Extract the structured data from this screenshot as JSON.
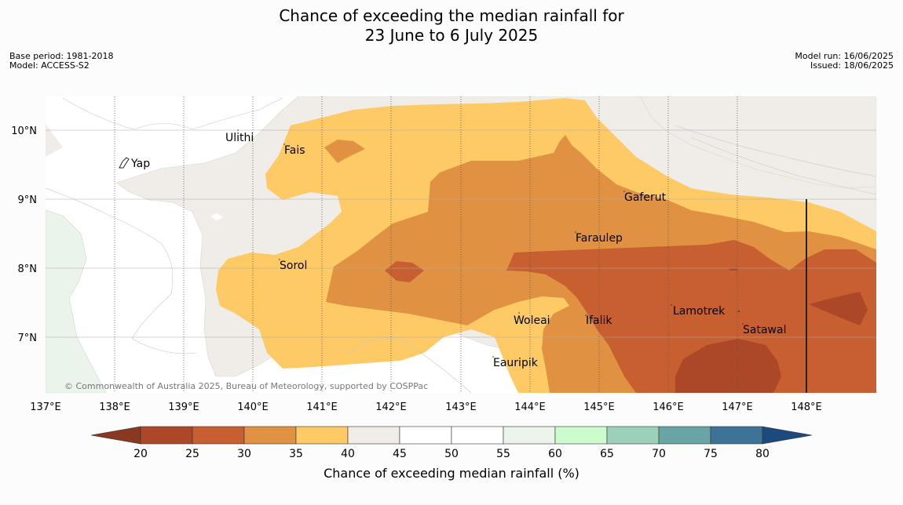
{
  "title": {
    "line1": "Chance of exceeding the median rainfall for",
    "line2": "23 June to 6 July 2025"
  },
  "meta": {
    "base_period": "Base period: 1981-2018",
    "model": "Model: ACCESS-S2",
    "model_run": "Model run: 16/06/2025",
    "issued": "Issued: 18/06/2025"
  },
  "copyright": "© Commonwealth of Australia 2025, Bureau of Meteorology, supported by COSPPac",
  "x_ticks": [
    "137°E",
    "138°E",
    "139°E",
    "140°E",
    "141°E",
    "142°E",
    "143°E",
    "144°E",
    "145°E",
    "146°E",
    "147°E",
    "148°E"
  ],
  "y_ticks": [
    "10°N",
    "9°N",
    "8°N",
    "7°N"
  ],
  "places": [
    {
      "name": "Yap"
    },
    {
      "name": "Ulithi"
    },
    {
      "name": "Fais"
    },
    {
      "name": "Sorol"
    },
    {
      "name": "Gaferut"
    },
    {
      "name": "Faraulep"
    },
    {
      "name": "Woleai"
    },
    {
      "name": "Ifalik"
    },
    {
      "name": "Lamotrek"
    },
    {
      "name": "Satawal"
    },
    {
      "name": "Eauripik"
    }
  ],
  "colorbar": {
    "title": "Chance of exceeding median rainfall (%)",
    "ticks": [
      "20",
      "25",
      "30",
      "35",
      "40",
      "45",
      "50",
      "55",
      "60",
      "65",
      "70",
      "75",
      "80"
    ],
    "colors": [
      "#ac4728",
      "#c75f30",
      "#e09242",
      "#fdca66",
      "#f0ede8",
      "#ffffff",
      "#ffffff",
      "#eaf4ea",
      "#ccfcce",
      "#9cd0ba",
      "#6aa5a6",
      "#3c7396"
    ],
    "under_color": "#8b3820",
    "over_color": "#1c4a7e"
  }
}
